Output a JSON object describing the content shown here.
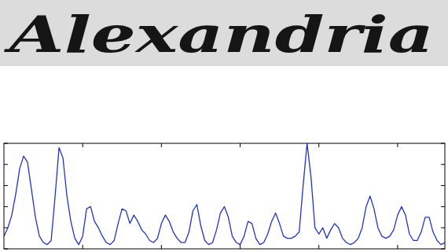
{
  "word_image": {
    "text": "Alexandria"
  },
  "chart_data": {
    "type": "line",
    "color": "#2233cc",
    "grid": false,
    "tick_labels": false,
    "xlim": [
      0,
      560
    ],
    "ylim": [
      0,
      5
    ],
    "xticks": [
      100,
      200,
      300,
      400,
      500
    ],
    "yticks": [
      0,
      1,
      2,
      3,
      4,
      5
    ],
    "x": [
      0,
      5,
      10,
      15,
      20,
      25,
      30,
      35,
      40,
      45,
      50,
      55,
      60,
      65,
      70,
      75,
      80,
      85,
      90,
      95,
      100,
      105,
      110,
      115,
      120,
      125,
      130,
      135,
      140,
      145,
      150,
      155,
      160,
      165,
      170,
      175,
      180,
      185,
      190,
      195,
      200,
      205,
      210,
      215,
      220,
      225,
      230,
      235,
      240,
      245,
      250,
      255,
      260,
      265,
      270,
      275,
      280,
      285,
      290,
      295,
      300,
      305,
      310,
      315,
      320,
      325,
      330,
      335,
      340,
      345,
      350,
      355,
      360,
      365,
      370,
      375,
      380,
      385,
      390,
      395,
      400,
      405,
      410,
      415,
      420,
      425,
      430,
      435,
      440,
      445,
      450,
      455,
      460,
      465,
      470,
      475,
      480,
      485,
      490,
      495,
      500,
      505,
      510,
      515,
      520,
      525,
      530,
      535,
      540,
      545,
      550,
      555,
      560
    ],
    "values": [
      0.6,
      1.0,
      1.6,
      2.6,
      3.8,
      4.4,
      4.1,
      2.8,
      1.5,
      0.6,
      0.3,
      0.2,
      0.4,
      2.5,
      4.8,
      4.3,
      2.5,
      1.3,
      0.5,
      0.2,
      0.6,
      1.9,
      2.0,
      1.3,
      1.0,
      0.6,
      0.3,
      0.2,
      0.4,
      1.2,
      1.9,
      1.8,
      1.2,
      1.6,
      1.3,
      0.9,
      0.7,
      0.4,
      0.3,
      0.5,
      1.2,
      1.6,
      1.3,
      0.8,
      0.5,
      0.3,
      0.3,
      0.8,
      1.8,
      2.1,
      1.1,
      0.4,
      0.2,
      0.3,
      0.9,
      1.7,
      2.0,
      1.5,
      0.6,
      0.3,
      0.2,
      0.6,
      1.3,
      1.2,
      0.5,
      0.2,
      0.3,
      0.7,
      1.3,
      1.7,
      1.2,
      0.6,
      0.5,
      0.5,
      0.6,
      0.8,
      3.0,
      5.0,
      3.4,
      1.0,
      0.7,
      1.0,
      0.5,
      0.9,
      1.2,
      1.0,
      0.5,
      0.3,
      0.2,
      0.3,
      0.5,
      1.0,
      2.0,
      2.5,
      1.9,
      1.0,
      0.6,
      0.5,
      0.6,
      0.9,
      1.6,
      2.0,
      1.6,
      0.7,
      0.4,
      0.4,
      0.8,
      1.5,
      1.5,
      0.8,
      0.4,
      0.2,
      0.3
    ]
  }
}
